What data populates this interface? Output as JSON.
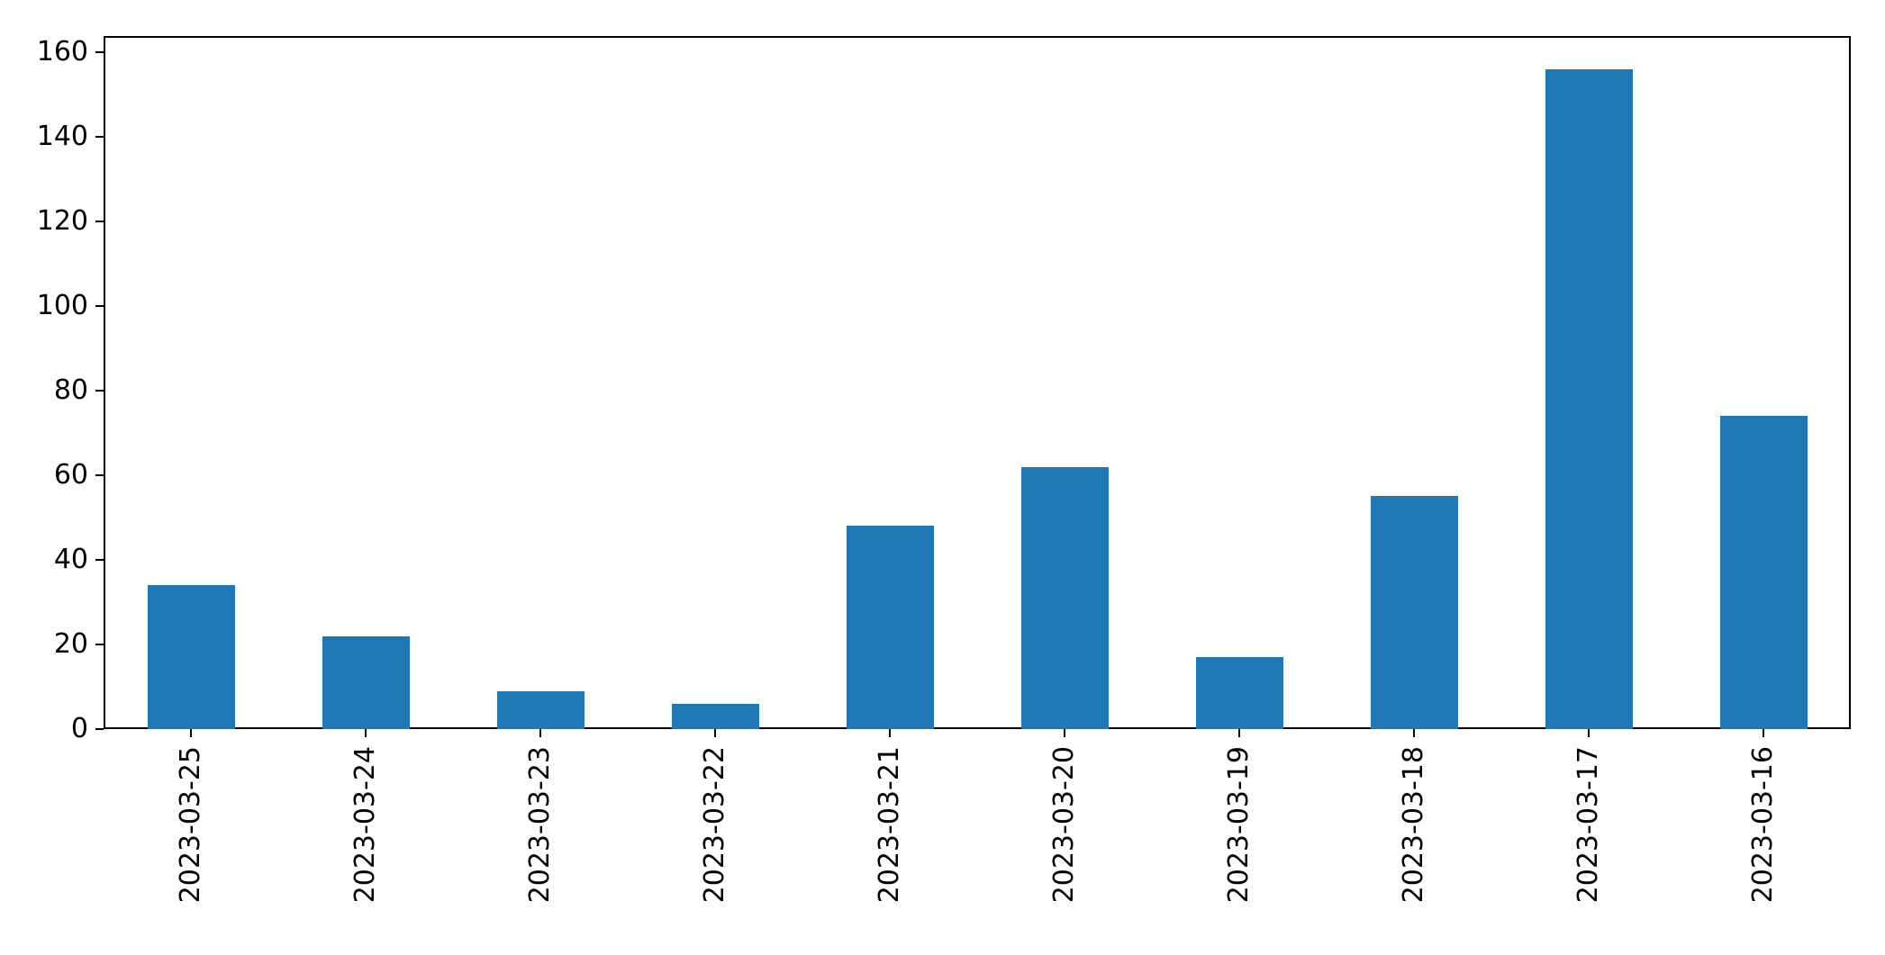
{
  "figure": {
    "background": "#ffffff",
    "spine_color": "#000000",
    "tick_label_color": "#000000"
  },
  "chart_data": {
    "type": "bar",
    "title": "",
    "xlabel": "",
    "ylabel": "",
    "categories": [
      "2023-03-25",
      "2023-03-24",
      "2023-03-23",
      "2023-03-22",
      "2023-03-21",
      "2023-03-20",
      "2023-03-19",
      "2023-03-18",
      "2023-03-17",
      "2023-03-16"
    ],
    "values": [
      34,
      22,
      9,
      6,
      48,
      62,
      17,
      55,
      156,
      74
    ],
    "bar_color": "#1f77b4",
    "yticks": [
      0,
      20,
      40,
      60,
      80,
      100,
      120,
      140,
      160
    ],
    "ylim": [
      0,
      163.8
    ],
    "x_tick_label_rotation_deg": 90,
    "grid": false,
    "legend_position": "none"
  }
}
